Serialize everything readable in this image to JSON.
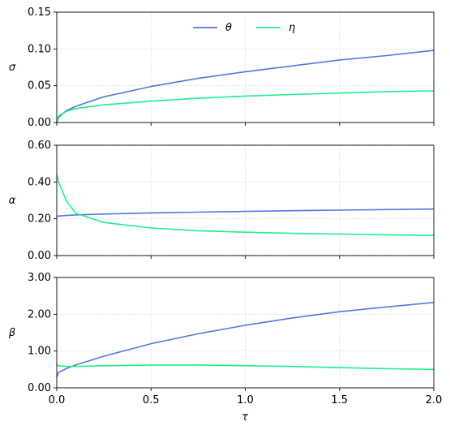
{
  "chart_data": {
    "type": "line",
    "shared_x": {
      "label": "τ",
      "range": [
        0,
        2
      ],
      "ticks": [
        0.0,
        0.5,
        1.0,
        1.5,
        2.0
      ],
      "tick_labels": [
        "0.0",
        "0.5",
        "1.0",
        "1.5",
        "2.0"
      ]
    },
    "grid": true,
    "legend": {
      "placement": "top-center",
      "entries": [
        "θ",
        "η"
      ]
    },
    "series_colors": {
      "θ": "#5577dd",
      "η": "#22ee88"
    },
    "x": [
      0,
      0.01,
      0.05,
      0.1,
      0.25,
      0.5,
      0.75,
      1.0,
      1.25,
      1.5,
      1.75,
      2.0
    ],
    "panels": [
      {
        "ylabel": "σ",
        "ylim": [
          0,
          0.15
        ],
        "yticks": [
          0,
          0.05,
          0.1,
          0.15
        ],
        "ytick_labels": [
          "0.00",
          "0.05",
          "0.10",
          "0.15"
        ],
        "series": [
          {
            "name": "θ",
            "values": [
              0.0,
              0.007,
              0.016,
              0.022,
              0.035,
              0.049,
              0.06,
              0.069,
              0.077,
              0.085,
              0.091,
              0.098
            ]
          },
          {
            "name": "η",
            "values": [
              0.0,
              0.009,
              0.015,
              0.019,
              0.024,
              0.029,
              0.033,
              0.036,
              0.038,
              0.04,
              0.042,
              0.043
            ]
          }
        ]
      },
      {
        "ylabel": "α",
        "ylim": [
          0,
          0.6
        ],
        "yticks": [
          0,
          0.2,
          0.4,
          0.6
        ],
        "ytick_labels": [
          "0.00",
          "0.20",
          "0.40",
          "0.60"
        ],
        "series": [
          {
            "name": "θ",
            "values": [
              0.213,
              0.215,
              0.218,
              0.221,
              0.226,
              0.232,
              0.236,
              0.24,
              0.244,
              0.247,
              0.25,
              0.253
            ]
          },
          {
            "name": "η",
            "values": [
              0.44,
              0.4,
              0.3,
              0.23,
              0.18,
              0.15,
              0.135,
              0.127,
              0.121,
              0.117,
              0.113,
              0.11
            ]
          }
        ]
      },
      {
        "ylabel": "β",
        "ylim": [
          0,
          3
        ],
        "yticks": [
          0,
          1,
          2,
          3
        ],
        "ytick_labels": [
          "0.00",
          "1.00",
          "2.00",
          "3.00"
        ],
        "series": [
          {
            "name": "θ",
            "values": [
              0.3,
              0.42,
              0.52,
              0.62,
              0.86,
              1.2,
              1.47,
              1.7,
              1.9,
              2.07,
              2.2,
              2.32
            ]
          },
          {
            "name": "η",
            "values": [
              0.62,
              0.6,
              0.58,
              0.58,
              0.6,
              0.62,
              0.62,
              0.6,
              0.58,
              0.55,
              0.52,
              0.5
            ]
          }
        ]
      }
    ]
  }
}
